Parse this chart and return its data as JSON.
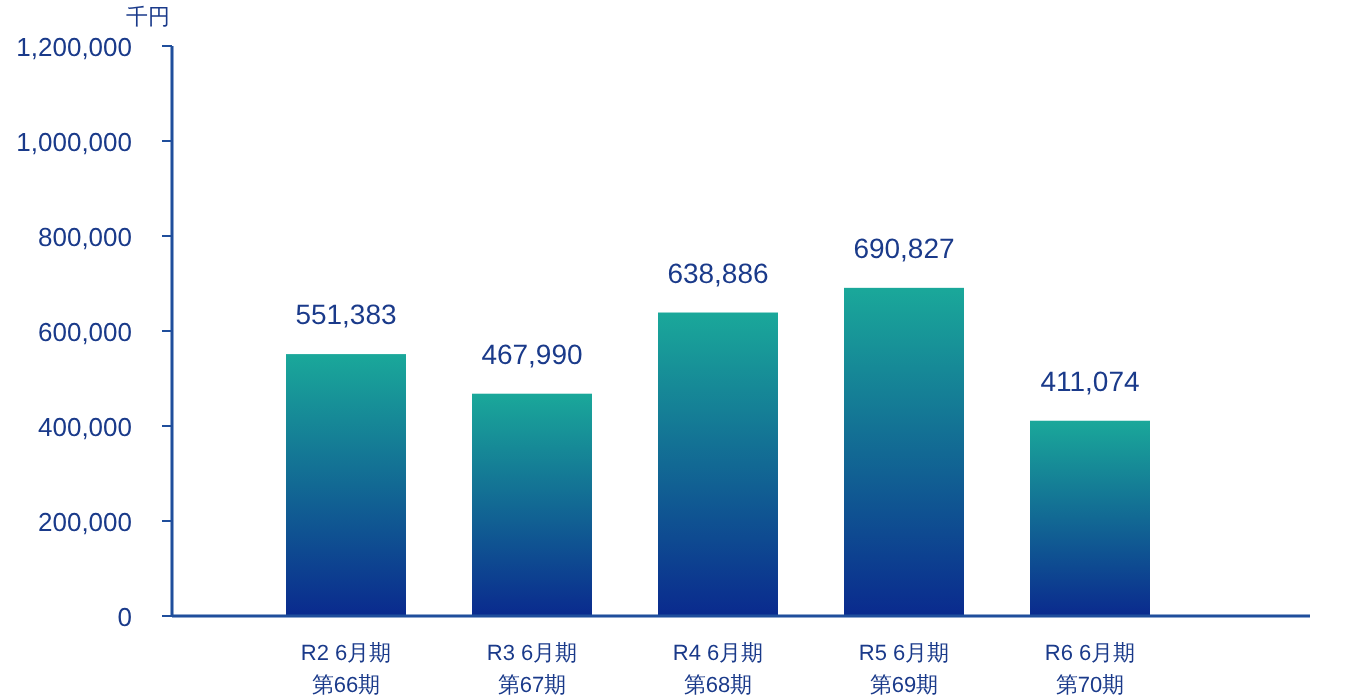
{
  "chart_data": {
    "type": "bar",
    "ylabel": "千円",
    "categories": [
      "R2 6月期第66期",
      "R3 6月期第67期",
      "R4 6月期第68期",
      "R5 6月期第69期",
      "R6 6月期第70期"
    ],
    "series": [
      {
        "color": "#1aa89a",
        "values": [
          551383,
          467990,
          638886,
          690827,
          411074
        ]
      }
    ],
    "value_labels": [
      "551,383",
      "467,990",
      "638,886",
      "690,827",
      "411,074"
    ],
    "ylim": [
      0,
      1200000
    ],
    "yticks": [
      {
        "value": 0,
        "label": "0"
      },
      {
        "value": 200000,
        "label": "200,000"
      },
      {
        "value": 400000,
        "label": "400,000"
      },
      {
        "value": 600000,
        "label": "600,000"
      },
      {
        "value": 800000,
        "label": "800,000"
      },
      {
        "value": 1000000,
        "label": "1,000,000"
      },
      {
        "value": 1200000,
        "label": "1,200,000"
      }
    ],
    "grid": false
  }
}
